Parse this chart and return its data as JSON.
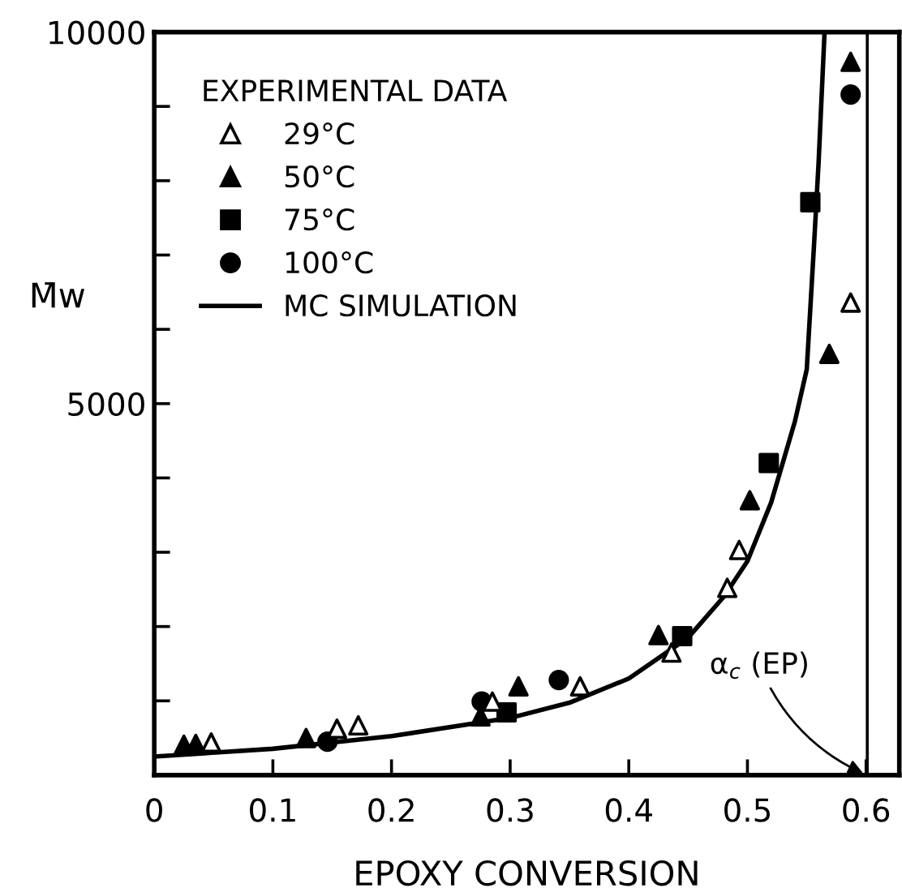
{
  "chart_data": {
    "type": "scatter",
    "xlabel": "EPOXY CONVERSION",
    "ylabel": "M̄w",
    "legend_title": "EXPERIMENTAL DATA",
    "legend": "top left",
    "grid": false,
    "xlim": [
      0,
      0.628
    ],
    "xticks": [
      0,
      0.1,
      0.2,
      0.3,
      0.4,
      0.5,
      0.6
    ],
    "ylim": [
      0,
      10000
    ],
    "yticks": [
      {
        "value": 0,
        "label": null
      },
      {
        "value": 1000,
        "label": null
      },
      {
        "value": 2000,
        "label": null
      },
      {
        "value": 3000,
        "label": null
      },
      {
        "value": 4000,
        "label": null
      },
      5000,
      {
        "value": 6000,
        "label": null
      },
      {
        "value": 7000,
        "label": null
      },
      {
        "value": 8000,
        "label": null
      },
      {
        "value": 9000,
        "label": null
      },
      10000
    ],
    "series": [
      {
        "name": "29°C",
        "marker": "triangle",
        "color": "#ffffff",
        "x": [
          0.048,
          0.154,
          0.172,
          0.285,
          0.359,
          0.436,
          0.483,
          0.493,
          0.587
        ],
        "values": [
          440,
          625,
          670,
          990,
          1195,
          1650,
          2520,
          3030,
          6360
        ]
      },
      {
        "name": "50°C",
        "marker": "triangle",
        "color": "#000000",
        "x": [
          0.025,
          0.035,
          0.128,
          0.275,
          0.307,
          0.425,
          0.502,
          0.569,
          0.587
        ],
        "values": [
          410,
          420,
          500,
          790,
          1195,
          1885,
          3700,
          5670,
          9600
        ]
      },
      {
        "name": "75°C",
        "marker": "square",
        "color": "#000000",
        "x": [
          0.297,
          0.445,
          0.518,
          0.553
        ],
        "values": [
          845,
          1870,
          4200,
          7710
        ]
      },
      {
        "name": "100°C",
        "marker": "circle",
        "color": "#000000",
        "x": [
          0.146,
          0.276,
          0.341,
          0.587
        ],
        "values": [
          450,
          990,
          1280,
          9160
        ]
      },
      {
        "name": "MC SIMULATION",
        "type": "line",
        "marker": "none",
        "line_style": "solid",
        "color": "#000000",
        "x": [
          0.0,
          0.1,
          0.2,
          0.3,
          0.35,
          0.4,
          0.45,
          0.48,
          0.5,
          0.52,
          0.54,
          0.55,
          0.556,
          0.56,
          0.565
        ],
        "values": [
          250,
          355,
          525,
          770,
          975,
          1300,
          1850,
          2400,
          2880,
          3670,
          4760,
          5460,
          7100,
          8250,
          10000
        ]
      }
    ],
    "ref_lines": [
      {
        "axis": "x",
        "value": 0.601,
        "label": "α$_{c}$ (EP)",
        "color": "#000000",
        "line_style": "solid"
      }
    ]
  }
}
